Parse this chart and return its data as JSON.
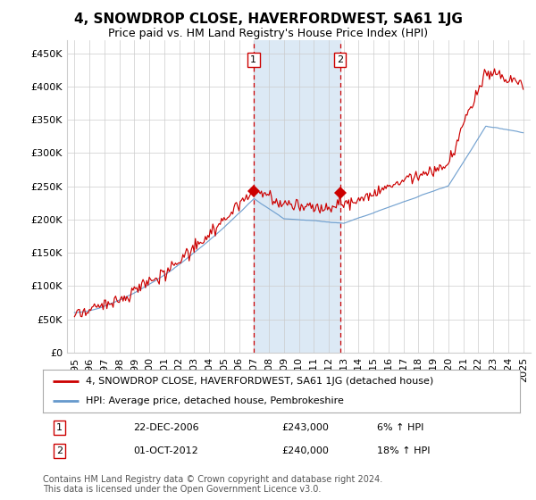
{
  "title": "4, SNOWDROP CLOSE, HAVERFORDWEST, SA61 1JG",
  "subtitle": "Price paid vs. HM Land Registry's House Price Index (HPI)",
  "ylabel_ticks": [
    "£0",
    "£50K",
    "£100K",
    "£150K",
    "£200K",
    "£250K",
    "£300K",
    "£350K",
    "£400K",
    "£450K"
  ],
  "ytick_values": [
    0,
    50000,
    100000,
    150000,
    200000,
    250000,
    300000,
    350000,
    400000,
    450000
  ],
  "ylim": [
    0,
    470000
  ],
  "xlim_start": 1994.5,
  "xlim_end": 2025.5,
  "sale1_date": 2006.97,
  "sale1_price": 243000,
  "sale1_label": "1",
  "sale2_date": 2012.75,
  "sale2_price": 240000,
  "sale2_label": "2",
  "highlight_start": 2006.97,
  "highlight_end": 2012.75,
  "highlight_color": "#dce9f5",
  "dashed_color": "#cc0000",
  "line_red": "#cc0000",
  "line_blue": "#6699cc",
  "grid_color": "#cccccc",
  "background_color": "#ffffff",
  "legend_line1": "4, SNOWDROP CLOSE, HAVERFORDWEST, SA61 1JG (detached house)",
  "legend_line2": "HPI: Average price, detached house, Pembrokeshire",
  "table_row1": [
    "1",
    "22-DEC-2006",
    "£243,000",
    "6% ↑ HPI"
  ],
  "table_row2": [
    "2",
    "01-OCT-2012",
    "£240,000",
    "18% ↑ HPI"
  ],
  "footnote": "Contains HM Land Registry data © Crown copyright and database right 2024.\nThis data is licensed under the Open Government Licence v3.0.",
  "title_fontsize": 11,
  "subtitle_fontsize": 9,
  "tick_fontsize": 8,
  "legend_fontsize": 8,
  "footnote_fontsize": 7
}
